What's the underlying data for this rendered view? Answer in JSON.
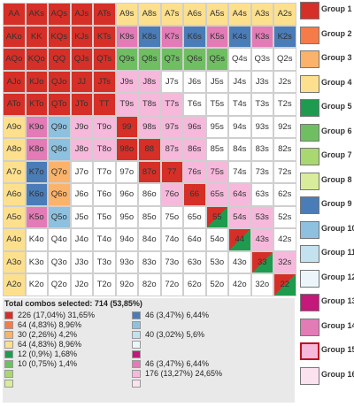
{
  "groups": [
    {
      "label": "Group 1",
      "color": "#d62f27"
    },
    {
      "label": "Group 2",
      "color": "#f57b49"
    },
    {
      "label": "Group 3",
      "color": "#fbb36b"
    },
    {
      "label": "Group 4",
      "color": "#fde08e"
    },
    {
      "label": "Group 5",
      "color": "#1e9b4e"
    },
    {
      "label": "Group 6",
      "color": "#6fbf62"
    },
    {
      "label": "Group 7",
      "color": "#a8d86f"
    },
    {
      "label": "Group 8",
      "color": "#d8ec9b"
    },
    {
      "label": "Group 9",
      "color": "#4a7cb8"
    },
    {
      "label": "Group 10",
      "color": "#8dc1df"
    },
    {
      "label": "Group 11",
      "color": "#c3e1ef"
    },
    {
      "label": "Group 12",
      "color": "#ecf6fa"
    },
    {
      "label": "Group 13",
      "color": "#c4187a"
    },
    {
      "label": "Group 14",
      "color": "#e27bb6"
    },
    {
      "label": "Group 15",
      "color": "#f6b9dc"
    },
    {
      "label": "Group 16",
      "color": "#fbe2ef"
    }
  ],
  "selected_group": 15,
  "empty_color": "#ffffff",
  "matrix": [
    [
      "AA",
      "AKs",
      "AQs",
      "AJs",
      "ATs",
      "A9s",
      "A8s",
      "A7s",
      "A6s",
      "A5s",
      "A4s",
      "A3s",
      "A2s"
    ],
    [
      "AKo",
      "KK",
      "KQs",
      "KJs",
      "KTs",
      "K9s",
      "K8s",
      "K7s",
      "K6s",
      "K5s",
      "K4s",
      "K3s",
      "K2s"
    ],
    [
      "AQo",
      "KQo",
      "QQ",
      "QJs",
      "QTs",
      "Q9s",
      "Q8s",
      "Q7s",
      "Q6s",
      "Q5s",
      "Q4s",
      "Q3s",
      "Q2s"
    ],
    [
      "AJo",
      "KJo",
      "QJo",
      "JJ",
      "JTs",
      "J9s",
      "J8s",
      "J7s",
      "J6s",
      "J5s",
      "J4s",
      "J3s",
      "J2s"
    ],
    [
      "ATo",
      "KTo",
      "QTo",
      "JTo",
      "TT",
      "T9s",
      "T8s",
      "T7s",
      "T6s",
      "T5s",
      "T4s",
      "T3s",
      "T2s"
    ],
    [
      "A9o",
      "K9o",
      "Q9o",
      "J9o",
      "T9o",
      "99",
      "98s",
      "97s",
      "96s",
      "95s",
      "94s",
      "93s",
      "92s"
    ],
    [
      "A8o",
      "K8o",
      "Q8o",
      "J8o",
      "T8o",
      "98o",
      "88",
      "87s",
      "86s",
      "85s",
      "84s",
      "83s",
      "82s"
    ],
    [
      "A7o",
      "K7o",
      "Q7o",
      "J7o",
      "T7o",
      "97o",
      "87o",
      "77",
      "76s",
      "75s",
      "74s",
      "73s",
      "72s"
    ],
    [
      "A6o",
      "K6o",
      "Q6o",
      "J6o",
      "T6o",
      "96o",
      "86o",
      "76o",
      "66",
      "65s",
      "64s",
      "63s",
      "62s"
    ],
    [
      "A5o",
      "K5o",
      "Q5o",
      "J5o",
      "T5o",
      "95o",
      "85o",
      "75o",
      "65o",
      "55",
      "54s",
      "53s",
      "52s"
    ],
    [
      "A4o",
      "K4o",
      "Q4o",
      "J4o",
      "T4o",
      "94o",
      "84o",
      "74o",
      "64o",
      "54o",
      "44",
      "43s",
      "42s"
    ],
    [
      "A3o",
      "K3o",
      "Q3o",
      "J3o",
      "T3o",
      "93o",
      "83o",
      "73o",
      "63o",
      "53o",
      "43o",
      "33",
      "32s"
    ],
    [
      "A2o",
      "K2o",
      "Q2o",
      "J2o",
      "T2o",
      "92o",
      "82o",
      "72o",
      "62o",
      "52o",
      "42o",
      "32o",
      "22"
    ]
  ],
  "groups_grid": [
    [
      1,
      1,
      1,
      1,
      1,
      4,
      4,
      4,
      4,
      4,
      4,
      4,
      4
    ],
    [
      1,
      1,
      1,
      1,
      1,
      14,
      9,
      14,
      9,
      14,
      9,
      14,
      9
    ],
    [
      1,
      1,
      1,
      1,
      1,
      6,
      6,
      6,
      6,
      6,
      0,
      0,
      0
    ],
    [
      1,
      1,
      1,
      1,
      1,
      15,
      15,
      0,
      0,
      0,
      0,
      0,
      0
    ],
    [
      1,
      1,
      1,
      1,
      1,
      15,
      15,
      15,
      0,
      0,
      0,
      0,
      0
    ],
    [
      4,
      14,
      10,
      15,
      15,
      1,
      15,
      15,
      15,
      0,
      0,
      0,
      0
    ],
    [
      4,
      14,
      10,
      15,
      15,
      1,
      1,
      15,
      15,
      0,
      0,
      0,
      0
    ],
    [
      4,
      9,
      3,
      0,
      0,
      0,
      1,
      1,
      15,
      15,
      0,
      0,
      0
    ],
    [
      4,
      9,
      3,
      0,
      0,
      0,
      0,
      15,
      1,
      15,
      15,
      0,
      0
    ],
    [
      4,
      14,
      10,
      0,
      0,
      0,
      0,
      0,
      0,
      0,
      15,
      15,
      0
    ],
    [
      4,
      0,
      0,
      0,
      0,
      0,
      0,
      0,
      0,
      0,
      0,
      15,
      0
    ],
    [
      4,
      0,
      0,
      0,
      0,
      0,
      0,
      0,
      0,
      0,
      0,
      0,
      15
    ],
    [
      4,
      0,
      0,
      0,
      0,
      0,
      0,
      0,
      0,
      0,
      0,
      0,
      0
    ]
  ],
  "split_cells": [
    {
      "row": 9,
      "col": 9,
      "groups": [
        1,
        5
      ]
    },
    {
      "row": 10,
      "col": 10,
      "groups": [
        1,
        5
      ]
    },
    {
      "row": 11,
      "col": 11,
      "groups": [
        1,
        5
      ]
    },
    {
      "row": 12,
      "col": 12,
      "groups": [
        1,
        5
      ]
    }
  ],
  "summary": {
    "total": "Total combos selected: 714 (53,85%)",
    "left": [
      {
        "group": 1,
        "text": "226 (17,04%) 31,65%"
      },
      {
        "group": 2,
        "text": "64 (4,83%) 8,96%"
      },
      {
        "group": 3,
        "text": "30 (2,26%) 4,2%"
      },
      {
        "group": 4,
        "text": "64 (4,83%) 8,96%"
      },
      {
        "group": 5,
        "text": "12 (0,9%) 1,68%"
      },
      {
        "group": 6,
        "text": "10 (0,75%) 1,4%"
      },
      {
        "group": 7,
        "text": ""
      },
      {
        "group": 8,
        "text": ""
      }
    ],
    "right": [
      {
        "group": 9,
        "text": "46 (3,47%) 6,44%"
      },
      {
        "group": 10,
        "text": ""
      },
      {
        "group": 11,
        "text": "40 (3,02%) 5,6%"
      },
      {
        "group": 12,
        "text": ""
      },
      {
        "group": 13,
        "text": ""
      },
      {
        "group": 14,
        "text": "46 (3,47%) 6,44%"
      },
      {
        "group": 15,
        "text": "176 (13,27%) 24,65%"
      },
      {
        "group": 16,
        "text": ""
      }
    ]
  }
}
